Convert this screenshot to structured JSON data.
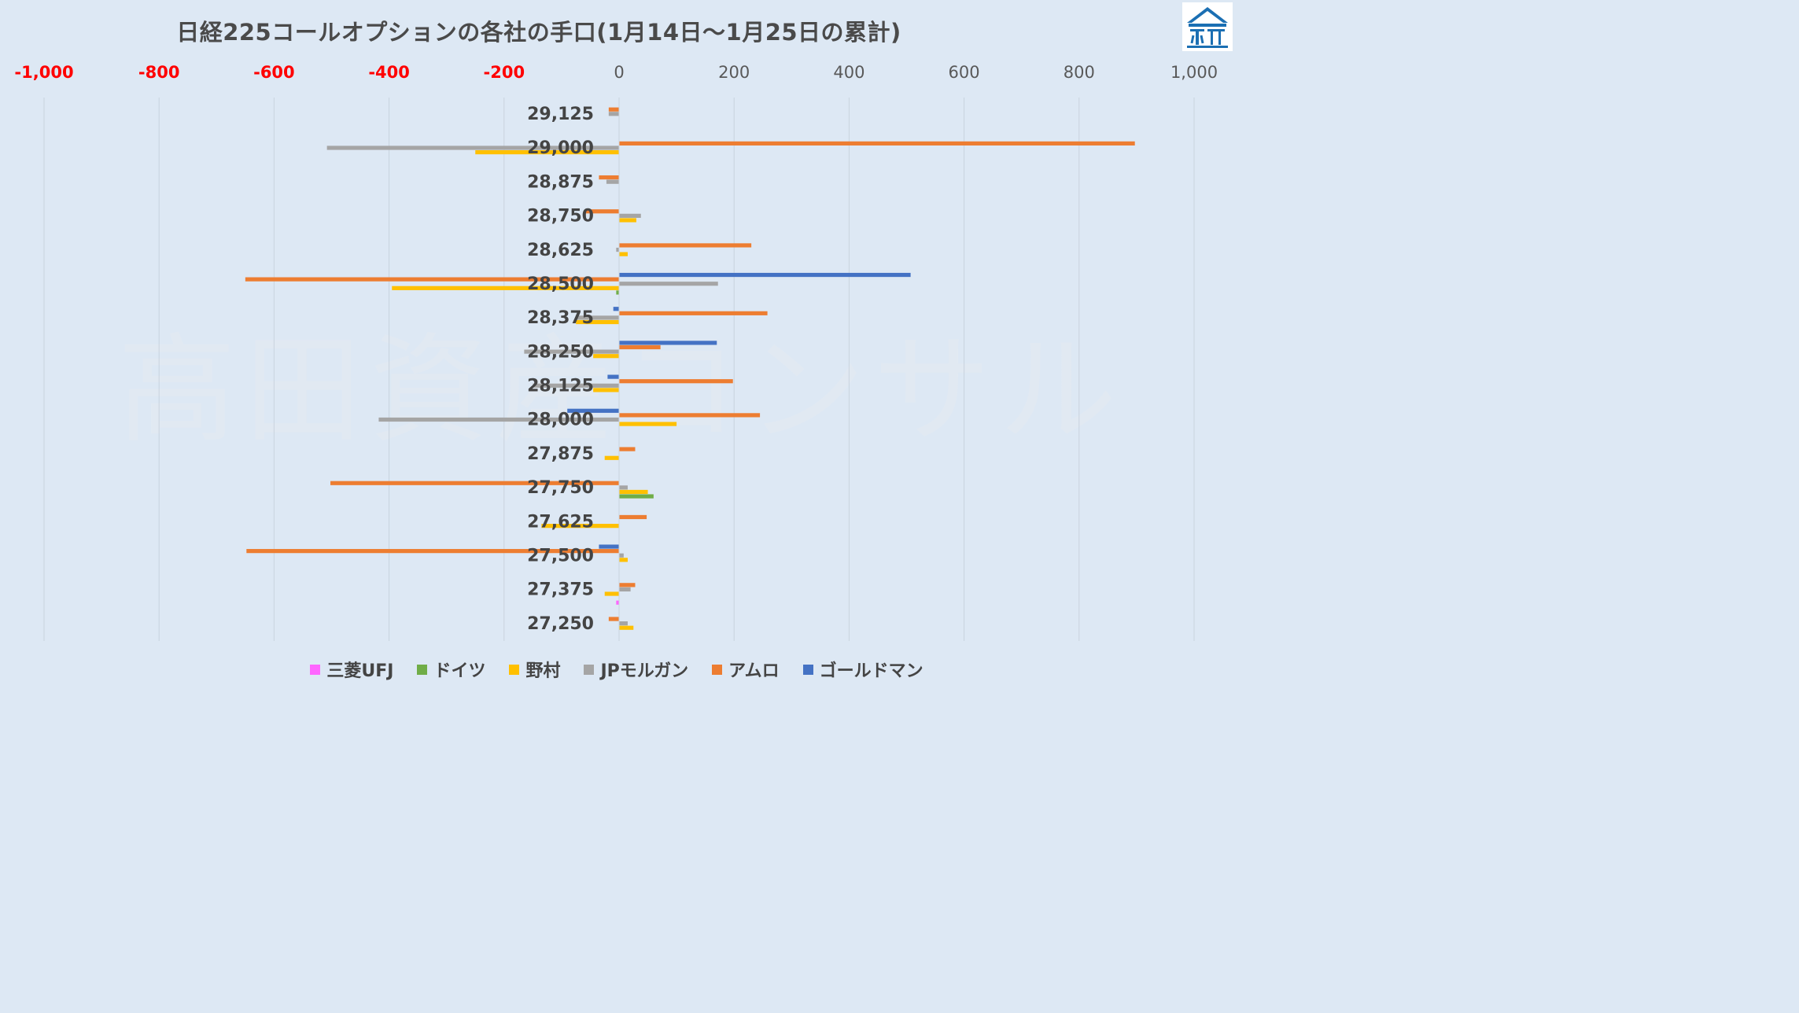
{
  "chart_data": {
    "type": "bar",
    "orientation": "horizontal",
    "title": "日経225コールオプションの各社の手口(1月14日～1月25日の累計)",
    "xlim": [
      -1000,
      1000
    ],
    "x_ticks": [
      -1000,
      -800,
      -600,
      -400,
      -200,
      0,
      200,
      400,
      600,
      800,
      1000
    ],
    "x_tick_labels": [
      "-1,000",
      "-800",
      "-600",
      "-400",
      "-200",
      "0",
      "200",
      "400",
      "600",
      "800",
      "1,000"
    ],
    "negative_tick_color": "#ff0000",
    "positive_tick_color": "#595959",
    "grid": "vertical",
    "legend_position": "bottom",
    "categories": [
      "29,125",
      "29,000",
      "28,875",
      "28,750",
      "28,625",
      "28,500",
      "28,375",
      "28,250",
      "28,125",
      "28,000",
      "27,875",
      "27,750",
      "27,625",
      "27,500",
      "27,375",
      "27,250"
    ],
    "series": [
      {
        "name": "三菱UFJ",
        "color": "#ff66ff",
        "values": [
          0,
          0,
          0,
          0,
          0,
          0,
          0,
          0,
          0,
          0,
          0,
          0,
          0,
          0,
          -5,
          0
        ]
      },
      {
        "name": "ドイツ",
        "color": "#70ad47",
        "values": [
          0,
          0,
          0,
          0,
          0,
          -5,
          0,
          0,
          0,
          0,
          0,
          60,
          0,
          0,
          0,
          0
        ]
      },
      {
        "name": "野村",
        "color": "#ffc000",
        "values": [
          0,
          -250,
          0,
          30,
          15,
          -395,
          -75,
          -45,
          -45,
          100,
          -25,
          50,
          -135,
          15,
          -25,
          25
        ]
      },
      {
        "name": "JPモルガン",
        "color": "#a5a5a5",
        "values": [
          -18,
          -508,
          -22,
          38,
          -5,
          172,
          -75,
          -165,
          -150,
          -418,
          0,
          15,
          0,
          8,
          20,
          15
        ]
      },
      {
        "name": "アムロ",
        "color": "#ed7d31",
        "values": [
          -18,
          897,
          -35,
          -58,
          230,
          -650,
          258,
          72,
          198,
          245,
          28,
          -502,
          48,
          -648,
          28,
          -18
        ]
      },
      {
        "name": "ゴールドマン",
        "color": "#4472c4",
        "values": [
          0,
          0,
          0,
          0,
          0,
          507,
          -10,
          170,
          -20,
          -90,
          0,
          0,
          0,
          -35,
          0,
          0
        ]
      }
    ]
  },
  "watermark": "高田資産コンサル"
}
